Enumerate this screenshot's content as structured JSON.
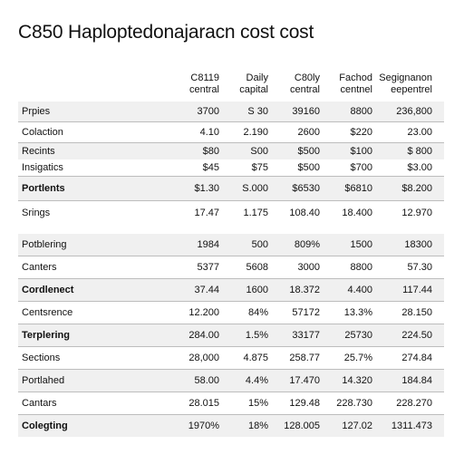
{
  "title": "C850 Haploptedonajaracn cost cost",
  "columns": [
    {
      "line1": "C8119",
      "line2": "central"
    },
    {
      "line1": "Daily",
      "line2": "capital"
    },
    {
      "line1": "C80ly",
      "line2": "central"
    },
    {
      "line1": "Fachod",
      "line2": "centnel"
    },
    {
      "line1": "Segignanon",
      "line2": "eepentrel"
    }
  ],
  "section1": [
    {
      "label": "Prpies",
      "values": [
        "3700",
        "S 30",
        "39160",
        "8800",
        "236,800"
      ]
    },
    {
      "label": "Colaction",
      "values": [
        "4.10",
        "2.190",
        "2600",
        "$220",
        "23.00"
      ]
    },
    {
      "label": "Recints",
      "values": [
        "$80",
        "S00",
        "$500",
        "$100",
        "$ 800"
      ]
    },
    {
      "label": "Insigatics",
      "values": [
        "$45",
        "$75",
        "$500",
        "$700",
        "$3.00"
      ]
    },
    {
      "label": "Portlents",
      "values": [
        "$1.30",
        "S.000",
        "$6530",
        "$6810",
        "$8.200"
      ]
    },
    {
      "label": "Srings",
      "values": [
        "17.47",
        "1.175",
        "108.40",
        "18.400",
        "12.970"
      ]
    }
  ],
  "section2": [
    {
      "label": "Potblering",
      "values": [
        "1984",
        "500",
        "809%",
        "1500",
        "18300"
      ]
    },
    {
      "label": "Canters",
      "values": [
        "5377",
        "5608",
        "3000",
        "8800",
        "57.30"
      ]
    },
    {
      "label": "Cordlenect",
      "values": [
        "37.44",
        "1600",
        "18.372",
        "4.400",
        "117.44"
      ]
    },
    {
      "label": "Centsrence",
      "values": [
        "12.200",
        "84%",
        "57172",
        "13.3%",
        "28.150"
      ]
    },
    {
      "label": "Terplering",
      "values": [
        "284.00",
        "1.5%",
        "33177",
        "25730",
        "224.50"
      ]
    },
    {
      "label": "Sections",
      "values": [
        "28,000",
        "4.875",
        "258.77",
        "25.7%",
        "274.84"
      ]
    },
    {
      "label": "Portlahed",
      "values": [
        "58.00",
        "4.4%",
        "17.470",
        "14.320",
        "184.84"
      ]
    },
    {
      "label": "Cantars",
      "values": [
        "28.015",
        "15%",
        "129.48",
        "228.730",
        "228.270"
      ]
    },
    {
      "label": "Colegting",
      "values": [
        "1970%",
        "18%",
        "128.005",
        "127.02",
        "1311.473"
      ]
    }
  ]
}
